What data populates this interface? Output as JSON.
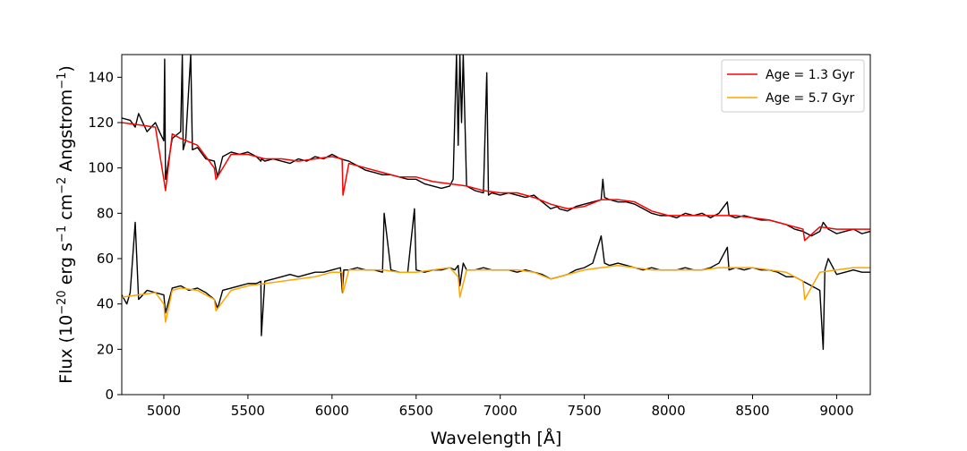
{
  "chart_data": {
    "type": "line",
    "title": "",
    "xlabel": "Wavelength [Å]",
    "ylabel_parts": {
      "pre": "Flux (10",
      "exp1": "−20",
      "mid1": " erg s",
      "exp2": "−1",
      "mid2": " cm",
      "exp3": "−2",
      "mid3": " Angstrom",
      "exp4": "−1",
      "post": ")"
    },
    "xlim": [
      4750,
      9200
    ],
    "ylim": [
      0,
      150
    ],
    "xticks": [
      5000,
      5500,
      6000,
      6500,
      7000,
      7500,
      8000,
      8500,
      9000
    ],
    "yticks": [
      0,
      20,
      40,
      60,
      80,
      100,
      120,
      140
    ],
    "xtick_labels": [
      "5000",
      "5500",
      "6000",
      "6500",
      "7000",
      "7500",
      "8000",
      "8500",
      "9000"
    ],
    "ytick_labels": [
      "0",
      "20",
      "40",
      "60",
      "80",
      "100",
      "120",
      "140"
    ],
    "grid": false,
    "legend_position": "top-right",
    "legend": [
      {
        "label": "Age = 1.3 Gyr",
        "color": "#ff0000"
      },
      {
        "label": "Age = 5.7 Gyr",
        "color": "#ffa500"
      }
    ],
    "series": [
      {
        "name": "Age = 1.3 Gyr",
        "role": "model",
        "color": "#ff0000",
        "x": [
          4750,
          4850,
          4950,
          5000,
          5010,
          5050,
          5100,
          5200,
          5300,
          5310,
          5400,
          5500,
          5600,
          5700,
          5800,
          5900,
          6000,
          6060,
          6065,
          6100,
          6200,
          6300,
          6400,
          6500,
          6600,
          6700,
          6800,
          6900,
          7000,
          7100,
          7200,
          7300,
          7400,
          7500,
          7600,
          7700,
          7800,
          7900,
          8000,
          8100,
          8200,
          8300,
          8400,
          8500,
          8600,
          8700,
          8800,
          8810,
          8900,
          9000,
          9100,
          9200
        ],
        "y": [
          120,
          119,
          118,
          95,
          90,
          115,
          113,
          110,
          100,
          95,
          106,
          106,
          104,
          104,
          103,
          104,
          105,
          104,
          88,
          102,
          100,
          98,
          96,
          96,
          94,
          93,
          92,
          90,
          89,
          89,
          87,
          84,
          82,
          83,
          86,
          86,
          85,
          81,
          79,
          79,
          79,
          79,
          79,
          78,
          77,
          75,
          73,
          68,
          74,
          73,
          73,
          73
        ]
      },
      {
        "name": "Age = 5.7 Gyr",
        "role": "model",
        "color": "#ffa500",
        "x": [
          4750,
          4850,
          4950,
          5000,
          5010,
          5050,
          5100,
          5200,
          5300,
          5310,
          5400,
          5500,
          5600,
          5700,
          5800,
          5900,
          6000,
          6060,
          6065,
          6100,
          6200,
          6300,
          6400,
          6500,
          6600,
          6700,
          6750,
          6760,
          6800,
          6900,
          7000,
          7100,
          7200,
          7300,
          7400,
          7500,
          7600,
          7700,
          7800,
          7900,
          8000,
          8100,
          8200,
          8300,
          8400,
          8500,
          8600,
          8700,
          8800,
          8810,
          8900,
          9000,
          9100,
          9200
        ],
        "y": [
          43,
          44,
          45,
          40,
          32,
          46,
          47,
          46,
          42,
          37,
          46,
          48,
          49,
          50,
          51,
          52,
          54,
          54,
          45,
          55,
          55,
          55,
          54,
          54,
          55,
          56,
          52,
          43,
          55,
          55,
          55,
          55,
          54,
          51,
          53,
          55,
          56,
          57,
          56,
          55,
          55,
          55,
          55,
          56,
          56,
          56,
          55,
          54,
          50,
          42,
          54,
          55,
          56,
          56
        ]
      },
      {
        "name": "",
        "role": "observed",
        "color": "#000000",
        "x": [
          4750,
          4800,
          4830,
          4850,
          4900,
          4950,
          4980,
          5000,
          5005,
          5010,
          5050,
          5100,
          5110,
          5115,
          5130,
          5160,
          5170,
          5200,
          5250,
          5300,
          5320,
          5350,
          5400,
          5450,
          5500,
          5550,
          5577,
          5580,
          5600,
          5650,
          5700,
          5750,
          5800,
          5850,
          5900,
          5950,
          6000,
          6050,
          6100,
          6150,
          6200,
          6250,
          6300,
          6350,
          6400,
          6450,
          6500,
          6550,
          6600,
          6650,
          6700,
          6720,
          6740,
          6750,
          6760,
          6770,
          6780,
          6800,
          6850,
          6900,
          6920,
          6930,
          6950,
          7000,
          7050,
          7100,
          7150,
          7200,
          7250,
          7300,
          7340,
          7350,
          7400,
          7450,
          7500,
          7550,
          7600,
          7610,
          7620,
          7650,
          7700,
          7750,
          7800,
          7850,
          7900,
          7950,
          8000,
          8050,
          8100,
          8150,
          8200,
          8250,
          8300,
          8350,
          8360,
          8400,
          8450,
          8500,
          8550,
          8600,
          8650,
          8700,
          8750,
          8800,
          8850,
          8900,
          8920,
          8950,
          9000,
          9050,
          9100,
          9150,
          9200
        ],
        "y": [
          122,
          121,
          118,
          124,
          116,
          120,
          115,
          112,
          148,
          95,
          113,
          116,
          150,
          108,
          112,
          150,
          108,
          109,
          104,
          103,
          96,
          105,
          107,
          106,
          107,
          105,
          103,
          104,
          103,
          104,
          103,
          102,
          104,
          103,
          105,
          104,
          106,
          104,
          103,
          101,
          99,
          98,
          97,
          97,
          96,
          95,
          95,
          93,
          92,
          91,
          92,
          95,
          150,
          110,
          150,
          120,
          150,
          92,
          90,
          89,
          142,
          88,
          89,
          88,
          89,
          88,
          87,
          88,
          85,
          82,
          83,
          82,
          81,
          83,
          84,
          85,
          86,
          95,
          87,
          86,
          85,
          85,
          84,
          82,
          80,
          79,
          79,
          78,
          80,
          79,
          80,
          78,
          80,
          85,
          79,
          78,
          79,
          78,
          77,
          77,
          76,
          75,
          73,
          72,
          70,
          72,
          76,
          73,
          71,
          72,
          73,
          71,
          72
        ]
      },
      {
        "name": "",
        "role": "observed",
        "color": "#000000",
        "x": [
          4750,
          4780,
          4800,
          4830,
          4850,
          4900,
          4950,
          5000,
          5010,
          5050,
          5100,
          5150,
          5200,
          5250,
          5300,
          5320,
          5350,
          5400,
          5450,
          5500,
          5550,
          5577,
          5580,
          5600,
          5650,
          5700,
          5750,
          5800,
          5850,
          5900,
          5950,
          6000,
          6050,
          6062,
          6070,
          6100,
          6150,
          6200,
          6250,
          6300,
          6310,
          6350,
          6400,
          6450,
          6490,
          6500,
          6550,
          6600,
          6650,
          6700,
          6730,
          6750,
          6760,
          6780,
          6800,
          6850,
          6900,
          6950,
          7000,
          7050,
          7100,
          7150,
          7200,
          7250,
          7300,
          7350,
          7400,
          7450,
          7500,
          7550,
          7600,
          7610,
          7620,
          7650,
          7700,
          7750,
          7800,
          7850,
          7900,
          7950,
          8000,
          8050,
          8100,
          8150,
          8200,
          8250,
          8300,
          8350,
          8360,
          8400,
          8450,
          8500,
          8550,
          8600,
          8650,
          8700,
          8750,
          8800,
          8850,
          8900,
          8920,
          8930,
          8950,
          9000,
          9050,
          9100,
          9150,
          9200
        ],
        "y": [
          44,
          40,
          45,
          76,
          42,
          46,
          45,
          44,
          36,
          47,
          48,
          46,
          47,
          45,
          42,
          38,
          46,
          47,
          48,
          49,
          49,
          50,
          26,
          50,
          51,
          52,
          53,
          52,
          53,
          54,
          54,
          55,
          56,
          45,
          55,
          55,
          56,
          55,
          55,
          54,
          80,
          55,
          54,
          54,
          82,
          55,
          54,
          55,
          55,
          56,
          55,
          57,
          48,
          58,
          55,
          55,
          56,
          55,
          55,
          55,
          54,
          55,
          54,
          53,
          51,
          52,
          53,
          55,
          56,
          58,
          70,
          64,
          58,
          57,
          58,
          57,
          56,
          55,
          56,
          55,
          55,
          55,
          56,
          55,
          55,
          56,
          58,
          65,
          55,
          56,
          55,
          56,
          55,
          55,
          54,
          52,
          52,
          50,
          48,
          46,
          20,
          55,
          60,
          53,
          54,
          55,
          54,
          54
        ]
      }
    ]
  }
}
